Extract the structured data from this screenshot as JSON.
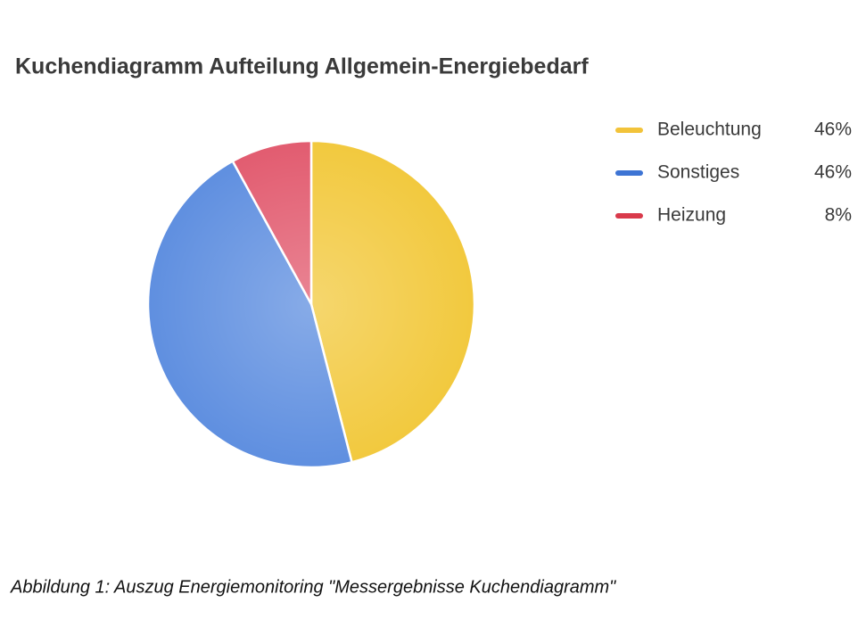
{
  "chart_data": {
    "type": "pie",
    "title": "Kuchendiagramm Aufteilung Allgemein-Energiebedarf",
    "categories": [
      "Beleuchtung",
      "Sonstiges",
      "Heizung"
    ],
    "values": [
      46,
      46,
      8
    ],
    "value_labels": [
      "46%",
      "46%",
      "8%"
    ],
    "colors": [
      "#f2c93e",
      "#5f8fe0",
      "#e25c70"
    ],
    "legend_colors": [
      "#f2c33a",
      "#3d74d4",
      "#d93a4b"
    ],
    "legend": "top-right"
  },
  "caption": "Abbildung 1: Auszug Energiemonitoring \"Messergebnisse Kuchendiagramm\""
}
